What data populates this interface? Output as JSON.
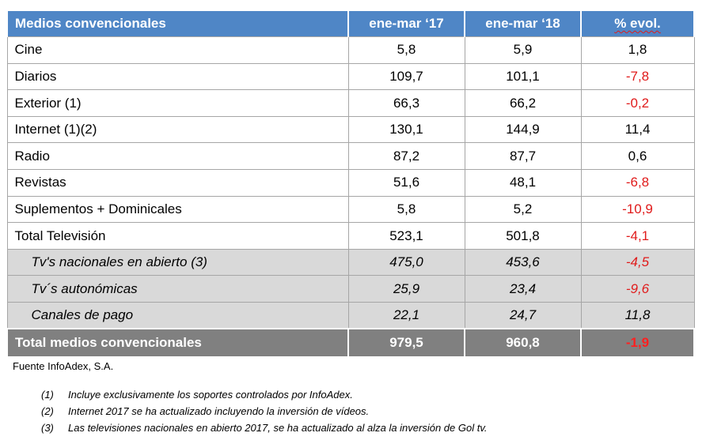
{
  "table": {
    "headers": [
      "Medios convencionales",
      "ene-mar ‘17",
      "ene-mar ‘18",
      "% evol."
    ],
    "rows": [
      {
        "label": "Cine",
        "v1": "5,8",
        "v2": "5,9",
        "evol": "1,8"
      },
      {
        "label": "Diarios",
        "v1": "109,7",
        "v2": "101,1",
        "evol": "-7,8"
      },
      {
        "label": "Exterior (1)",
        "v1": "66,3",
        "v2": "66,2",
        "evol": "-0,2"
      },
      {
        "label": "Internet (1)(2)",
        "v1": "130,1",
        "v2": "144,9",
        "evol": "11,4"
      },
      {
        "label": "Radio",
        "v1": "87,2",
        "v2": "87,7",
        "evol": "0,6"
      },
      {
        "label": "Revistas",
        "v1": "51,6",
        "v2": "48,1",
        "evol": "-6,8"
      },
      {
        "label": "Suplementos + Dominicales",
        "v1": "5,8",
        "v2": "5,2",
        "evol": "-10,9"
      },
      {
        "label": "Total Televisión",
        "v1": "523,1",
        "v2": "501,8",
        "evol": "-4,1"
      }
    ],
    "subrows": [
      {
        "label": "Tv's nacionales en abierto (3)",
        "v1": "475,0",
        "v2": "453,6",
        "evol": "-4,5"
      },
      {
        "label": "Tv´s autonómicas",
        "v1": "25,9",
        "v2": "23,4",
        "evol": "-9,6"
      },
      {
        "label": "Canales de pago",
        "v1": "22,1",
        "v2": "24,7",
        "evol": "11,8"
      }
    ],
    "total": {
      "label": "Total medios convencionales",
      "v1": "979,5",
      "v2": "960,8",
      "evol": "-1,9"
    }
  },
  "source": "Fuente InfoAdex, S.A.",
  "notes": [
    {
      "num": "(1)",
      "text": "Incluye exclusivamente los soportes controlados por InfoAdex."
    },
    {
      "num": "(2)",
      "text": "Internet 2017 se ha actualizado incluyendo la inversión de vídeos."
    },
    {
      "num": "(3)",
      "text": "Las televisiones nacionales en abierto 2017, se ha actualizado al alza la inversión de Gol tv."
    }
  ],
  "colors": {
    "header_bg": "#4f86c6",
    "total_bg": "#808080",
    "subrow_bg": "#d9d9d9",
    "negative": "#e01b1b"
  }
}
